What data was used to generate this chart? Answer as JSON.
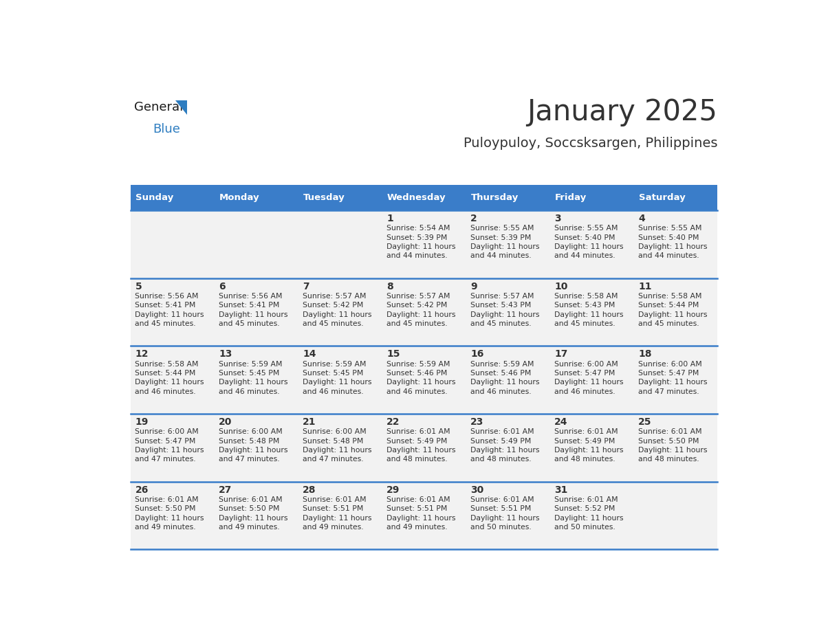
{
  "title": "January 2025",
  "subtitle": "Puloypuloy, Soccsksargen, Philippines",
  "header_bg": "#3A7DC9",
  "header_text_color": "#FFFFFF",
  "cell_bg": "#F2F2F2",
  "border_color": "#3A7DC9",
  "text_color": "#333333",
  "days_of_week": [
    "Sunday",
    "Monday",
    "Tuesday",
    "Wednesday",
    "Thursday",
    "Friday",
    "Saturday"
  ],
  "calendar_data": [
    [
      {
        "day": "",
        "sunrise": "",
        "sunset": "",
        "daylight_hours": "",
        "daylight_mins": ""
      },
      {
        "day": "",
        "sunrise": "",
        "sunset": "",
        "daylight_hours": "",
        "daylight_mins": ""
      },
      {
        "day": "",
        "sunrise": "",
        "sunset": "",
        "daylight_hours": "",
        "daylight_mins": ""
      },
      {
        "day": "1",
        "sunrise": "5:54 AM",
        "sunset": "5:39 PM",
        "daylight_hours": "11",
        "daylight_mins": "44"
      },
      {
        "day": "2",
        "sunrise": "5:55 AM",
        "sunset": "5:39 PM",
        "daylight_hours": "11",
        "daylight_mins": "44"
      },
      {
        "day": "3",
        "sunrise": "5:55 AM",
        "sunset": "5:40 PM",
        "daylight_hours": "11",
        "daylight_mins": "44"
      },
      {
        "day": "4",
        "sunrise": "5:55 AM",
        "sunset": "5:40 PM",
        "daylight_hours": "11",
        "daylight_mins": "44"
      }
    ],
    [
      {
        "day": "5",
        "sunrise": "5:56 AM",
        "sunset": "5:41 PM",
        "daylight_hours": "11",
        "daylight_mins": "45"
      },
      {
        "day": "6",
        "sunrise": "5:56 AM",
        "sunset": "5:41 PM",
        "daylight_hours": "11",
        "daylight_mins": "45"
      },
      {
        "day": "7",
        "sunrise": "5:57 AM",
        "sunset": "5:42 PM",
        "daylight_hours": "11",
        "daylight_mins": "45"
      },
      {
        "day": "8",
        "sunrise": "5:57 AM",
        "sunset": "5:42 PM",
        "daylight_hours": "11",
        "daylight_mins": "45"
      },
      {
        "day": "9",
        "sunrise": "5:57 AM",
        "sunset": "5:43 PM",
        "daylight_hours": "11",
        "daylight_mins": "45"
      },
      {
        "day": "10",
        "sunrise": "5:58 AM",
        "sunset": "5:43 PM",
        "daylight_hours": "11",
        "daylight_mins": "45"
      },
      {
        "day": "11",
        "sunrise": "5:58 AM",
        "sunset": "5:44 PM",
        "daylight_hours": "11",
        "daylight_mins": "45"
      }
    ],
    [
      {
        "day": "12",
        "sunrise": "5:58 AM",
        "sunset": "5:44 PM",
        "daylight_hours": "11",
        "daylight_mins": "46"
      },
      {
        "day": "13",
        "sunrise": "5:59 AM",
        "sunset": "5:45 PM",
        "daylight_hours": "11",
        "daylight_mins": "46"
      },
      {
        "day": "14",
        "sunrise": "5:59 AM",
        "sunset": "5:45 PM",
        "daylight_hours": "11",
        "daylight_mins": "46"
      },
      {
        "day": "15",
        "sunrise": "5:59 AM",
        "sunset": "5:46 PM",
        "daylight_hours": "11",
        "daylight_mins": "46"
      },
      {
        "day": "16",
        "sunrise": "5:59 AM",
        "sunset": "5:46 PM",
        "daylight_hours": "11",
        "daylight_mins": "46"
      },
      {
        "day": "17",
        "sunrise": "6:00 AM",
        "sunset": "5:47 PM",
        "daylight_hours": "11",
        "daylight_mins": "46"
      },
      {
        "day": "18",
        "sunrise": "6:00 AM",
        "sunset": "5:47 PM",
        "daylight_hours": "11",
        "daylight_mins": "47"
      }
    ],
    [
      {
        "day": "19",
        "sunrise": "6:00 AM",
        "sunset": "5:47 PM",
        "daylight_hours": "11",
        "daylight_mins": "47"
      },
      {
        "day": "20",
        "sunrise": "6:00 AM",
        "sunset": "5:48 PM",
        "daylight_hours": "11",
        "daylight_mins": "47"
      },
      {
        "day": "21",
        "sunrise": "6:00 AM",
        "sunset": "5:48 PM",
        "daylight_hours": "11",
        "daylight_mins": "47"
      },
      {
        "day": "22",
        "sunrise": "6:01 AM",
        "sunset": "5:49 PM",
        "daylight_hours": "11",
        "daylight_mins": "48"
      },
      {
        "day": "23",
        "sunrise": "6:01 AM",
        "sunset": "5:49 PM",
        "daylight_hours": "11",
        "daylight_mins": "48"
      },
      {
        "day": "24",
        "sunrise": "6:01 AM",
        "sunset": "5:49 PM",
        "daylight_hours": "11",
        "daylight_mins": "48"
      },
      {
        "day": "25",
        "sunrise": "6:01 AM",
        "sunset": "5:50 PM",
        "daylight_hours": "11",
        "daylight_mins": "48"
      }
    ],
    [
      {
        "day": "26",
        "sunrise": "6:01 AM",
        "sunset": "5:50 PM",
        "daylight_hours": "11",
        "daylight_mins": "49"
      },
      {
        "day": "27",
        "sunrise": "6:01 AM",
        "sunset": "5:50 PM",
        "daylight_hours": "11",
        "daylight_mins": "49"
      },
      {
        "day": "28",
        "sunrise": "6:01 AM",
        "sunset": "5:51 PM",
        "daylight_hours": "11",
        "daylight_mins": "49"
      },
      {
        "day": "29",
        "sunrise": "6:01 AM",
        "sunset": "5:51 PM",
        "daylight_hours": "11",
        "daylight_mins": "49"
      },
      {
        "day": "30",
        "sunrise": "6:01 AM",
        "sunset": "5:51 PM",
        "daylight_hours": "11",
        "daylight_mins": "50"
      },
      {
        "day": "31",
        "sunrise": "6:01 AM",
        "sunset": "5:52 PM",
        "daylight_hours": "11",
        "daylight_mins": "50"
      },
      {
        "day": "",
        "sunrise": "",
        "sunset": "",
        "daylight_hours": "",
        "daylight_mins": ""
      }
    ]
  ],
  "logo_general_color": "#1a1a1a",
  "logo_blue_color": "#2E7DC0",
  "logo_triangle_color": "#2E7DC0",
  "fig_width": 11.88,
  "fig_height": 9.18,
  "dpi": 100
}
